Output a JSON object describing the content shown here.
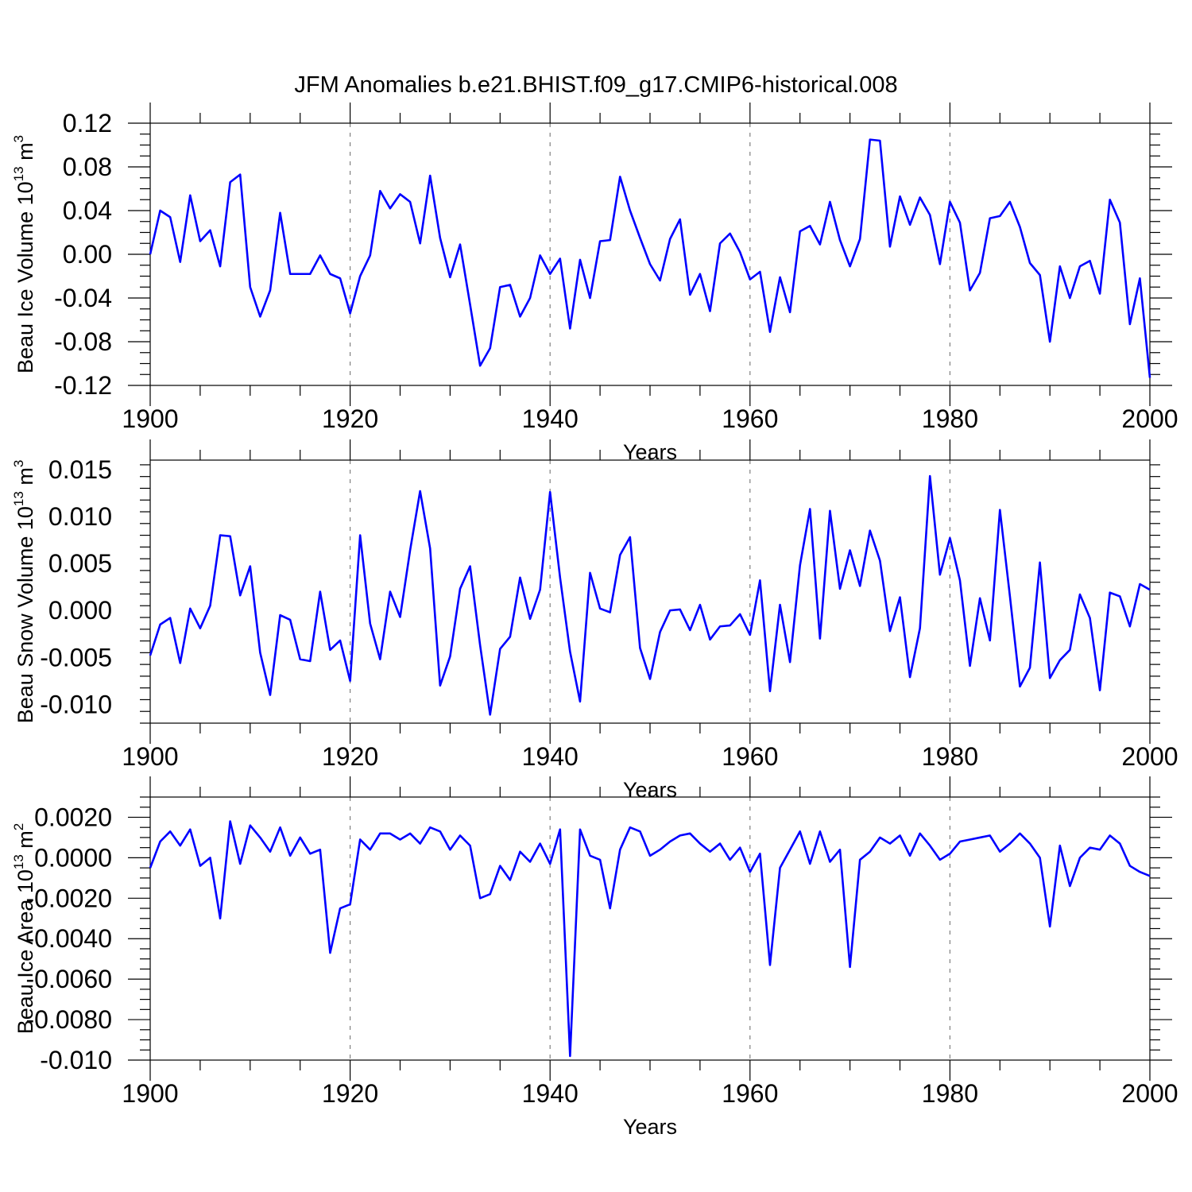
{
  "figure": {
    "title": "JFM Anomalies b.e21.BHIST.f09_g17.CMIP6-historical.008"
  },
  "chart_data": [
    {
      "type": "line",
      "id": "ice-volume",
      "xlabel": "Years",
      "ylabel": "Beau Ice Volume 10",
      "ylabel_exp": "13",
      "ylabel_unit": " m",
      "ylabel_unit_exp": "3",
      "xlim": [
        1900,
        2000
      ],
      "ylim": [
        -0.12,
        0.12
      ],
      "xticks": [
        1900,
        1920,
        1940,
        1960,
        1980,
        2000
      ],
      "yticks": [
        -0.12,
        -0.08,
        -0.04,
        0.0,
        0.04,
        0.08,
        0.12
      ],
      "ytick_labels": [
        "-0.12",
        "-0.08",
        "-0.04",
        "0.00",
        "0.04",
        "0.08",
        "0.12"
      ],
      "grid_x": [
        1920,
        1940,
        1960,
        1980
      ],
      "color": "#0000ff",
      "x_start": 1900,
      "values": [
        0.0,
        0.04,
        0.034,
        -0.007,
        0.054,
        0.012,
        0.022,
        -0.011,
        0.066,
        0.073,
        -0.03,
        -0.057,
        -0.033,
        0.038,
        -0.018,
        -0.018,
        -0.018,
        -0.001,
        -0.018,
        -0.022,
        -0.054,
        -0.02,
        -0.001,
        0.058,
        0.042,
        0.055,
        0.048,
        0.01,
        0.072,
        0.015,
        -0.021,
        0.009,
        -0.046,
        -0.102,
        -0.086,
        -0.03,
        -0.028,
        -0.057,
        -0.04,
        -0.001,
        -0.018,
        -0.004,
        -0.068,
        -0.005,
        -0.04,
        0.012,
        0.013,
        0.071,
        0.04,
        0.015,
        -0.009,
        -0.024,
        0.014,
        0.032,
        -0.037,
        -0.018,
        -0.052,
        0.01,
        0.019,
        0.002,
        -0.023,
        -0.016,
        -0.071,
        -0.021,
        -0.053,
        0.021,
        0.026,
        0.009,
        0.048,
        0.013,
        -0.011,
        0.014,
        0.105,
        0.104,
        0.007,
        0.053,
        0.027,
        0.052,
        0.036,
        -0.009,
        0.048,
        0.029,
        -0.033,
        -0.017,
        0.033,
        0.035,
        0.048,
        0.025,
        -0.008,
        -0.019,
        -0.08,
        -0.011,
        -0.04,
        -0.011,
        -0.006,
        -0.036,
        0.05,
        0.029,
        -0.064,
        -0.022,
        -0.113
      ]
    },
    {
      "type": "line",
      "id": "snow-volume",
      "xlabel": "Years",
      "ylabel": "Beau Snow Volume 10",
      "ylabel_exp": "13",
      "ylabel_unit": " m",
      "ylabel_unit_exp": "3",
      "xlim": [
        1900,
        2000
      ],
      "ylim": [
        -0.012,
        0.016
      ],
      "xticks": [
        1900,
        1920,
        1940,
        1960,
        1980,
        2000
      ],
      "yticks": [
        -0.01,
        -0.005,
        0.0,
        0.005,
        0.01,
        0.015
      ],
      "ytick_labels": [
        "-0.010",
        "-0.005",
        "0.000",
        "0.005",
        "0.010",
        "0.015"
      ],
      "grid_x": [
        1920,
        1940,
        1960,
        1980
      ],
      "color": "#0000ff",
      "x_start": 1900,
      "values": [
        -0.0048,
        -0.0015,
        -0.0008,
        -0.0056,
        0.0002,
        -0.0019,
        0.0005,
        0.008,
        0.0079,
        0.0016,
        0.0047,
        -0.0045,
        -0.009,
        -0.0005,
        -0.001,
        -0.0052,
        -0.0054,
        0.002,
        -0.0042,
        -0.0032,
        -0.0075,
        0.008,
        -0.0014,
        -0.0052,
        0.002,
        -0.0007,
        0.0064,
        0.0127,
        0.0066,
        -0.008,
        -0.0049,
        0.0023,
        0.0047,
        -0.0037,
        -0.0111,
        -0.0041,
        -0.0028,
        0.0035,
        -0.0009,
        0.0022,
        0.0126,
        0.0035,
        -0.0044,
        -0.0097,
        0.004,
        0.0002,
        -0.0002,
        0.0059,
        0.0078,
        -0.004,
        -0.0073,
        -0.0023,
        0.0,
        0.0001,
        -0.0021,
        0.0006,
        -0.0031,
        -0.0017,
        -0.0016,
        -0.0004,
        -0.0026,
        0.0032,
        -0.0086,
        0.0006,
        -0.0055,
        0.0048,
        0.0108,
        -0.003,
        0.0106,
        0.0023,
        0.0064,
        0.0026,
        0.0085,
        0.0053,
        -0.0022,
        0.0014,
        -0.0071,
        -0.0019,
        0.0143,
        0.0038,
        0.0077,
        0.0032,
        -0.0059,
        0.0013,
        -0.0032,
        0.0107,
        0.0015,
        -0.0081,
        -0.0061,
        0.0051,
        -0.0072,
        -0.0053,
        -0.0042,
        0.0017,
        -0.0008,
        -0.0085,
        0.0019,
        0.0015,
        -0.0017,
        0.0028,
        0.0022
      ]
    },
    {
      "type": "line",
      "id": "ice-area",
      "xlabel": "Years",
      "ylabel": "Beau Ice Area 10",
      "ylabel_exp": "13",
      "ylabel_unit": " m",
      "ylabel_unit_exp": "2",
      "xlim": [
        1900,
        2000
      ],
      "ylim": [
        -0.01,
        0.003
      ],
      "xticks": [
        1900,
        1920,
        1940,
        1960,
        1980,
        2000
      ],
      "yticks": [
        -0.01,
        -0.008,
        -0.006,
        -0.004,
        -0.002,
        0.0,
        0.002
      ],
      "ytick_labels": [
        "-0.010",
        "-0.0080",
        "-0.0060",
        "-0.0040",
        "-0.0020",
        "0.0000",
        "0.0020"
      ],
      "grid_x": [
        1920,
        1940,
        1960,
        1980
      ],
      "color": "#0000ff",
      "x_start": 1900,
      "values": [
        -0.0005,
        0.0008,
        0.0013,
        0.0006,
        0.0014,
        -0.0004,
        0.0,
        -0.003,
        0.0018,
        -0.0003,
        0.0016,
        0.001,
        0.0003,
        0.0015,
        0.0001,
        0.001,
        0.0002,
        0.0004,
        -0.0047,
        -0.0025,
        -0.0023,
        0.0009,
        0.0004,
        0.0012,
        0.0012,
        0.0009,
        0.0012,
        0.0007,
        0.0015,
        0.0013,
        0.0004,
        0.0011,
        0.0006,
        -0.002,
        -0.0018,
        -0.0004,
        -0.0011,
        0.0003,
        -0.0002,
        0.0007,
        -0.0003,
        0.0014,
        -0.0098,
        0.0014,
        0.0001,
        -0.0001,
        -0.0025,
        0.0004,
        0.0015,
        0.0013,
        0.0001,
        0.0004,
        0.0008,
        0.0011,
        0.0012,
        0.0007,
        0.0003,
        0.0007,
        -0.0001,
        0.0005,
        -0.0007,
        0.0002,
        -0.0053,
        -0.0005,
        0.0004,
        0.0013,
        -0.0003,
        0.0013,
        -0.0002,
        0.0004,
        -0.0054,
        -0.0001,
        0.0003,
        0.001,
        0.0007,
        0.0011,
        0.0001,
        0.0012,
        0.0006,
        -0.0001,
        0.0002,
        0.0008,
        0.0009,
        0.001,
        0.0011,
        0.0003,
        0.0007,
        0.0012,
        0.0007,
        0.0,
        -0.0034,
        0.0006,
        -0.0014,
        0.0,
        0.0005,
        0.0004,
        0.0011,
        0.0007,
        -0.0004,
        -0.0007,
        -0.0009
      ]
    }
  ]
}
